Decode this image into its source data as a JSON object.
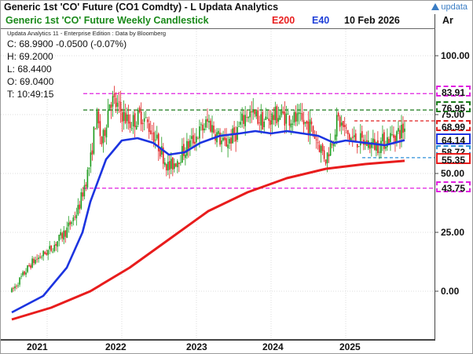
{
  "window": {
    "title": "Generic 1st 'CO' Future (CO1 Comdty) - L Updata Analytics",
    "brand": "updata"
  },
  "header": {
    "chart_title": "Generic 1st 'CO' Future Weekly Candlestick",
    "e200_label": "E200",
    "e40_label": "E40",
    "date": "10 Feb 2026",
    "right_label": "Ar"
  },
  "ohlc": {
    "edition": "Updata Analytics 11 - Enterprise Edition : Data by Bloomberg",
    "close": "C: 68.9900  -0.0500 (-0.07%)",
    "high": "H: 69.2000",
    "low": "L: 68.4400",
    "open": "O: 69.0400",
    "time": "T: 10:49:15"
  },
  "colors": {
    "candle_up": "#1a9a1a",
    "candle_down": "#e02020",
    "e40": "#1c34e0",
    "e200": "#e81c1c",
    "magenta": "#e020e0",
    "green_dash": "#1a7a1a",
    "red_dash": "#e02020",
    "blue_dash": "#2d8fd8"
  },
  "chart_data": {
    "type": "candlestick",
    "title": "Generic 1st 'CO' Future Weekly Candlestick",
    "ylim": [
      -10,
      108
    ],
    "y_ticks": [
      {
        "value": 100,
        "label": "100.00"
      },
      {
        "value": 75,
        "label": "75.00"
      },
      {
        "value": 50,
        "label": "50.00"
      },
      {
        "value": 25,
        "label": "25.00"
      },
      {
        "value": 0,
        "label": "0.00"
      }
    ],
    "x_labels": [
      "2021",
      "2022",
      "2023",
      "2024",
      "2025"
    ],
    "anchors": [
      {
        "t": 0.0,
        "p": 0
      },
      {
        "t": 0.05,
        "p": 12
      },
      {
        "t": 0.1,
        "p": 18
      },
      {
        "t": 0.14,
        "p": 26
      },
      {
        "t": 0.17,
        "p": 35
      },
      {
        "t": 0.2,
        "p": 55
      },
      {
        "t": 0.215,
        "p": 75
      },
      {
        "t": 0.23,
        "p": 62
      },
      {
        "t": 0.25,
        "p": 82
      },
      {
        "t": 0.27,
        "p": 78
      },
      {
        "t": 0.3,
        "p": 71
      },
      {
        "t": 0.33,
        "p": 75
      },
      {
        "t": 0.36,
        "p": 67
      },
      {
        "t": 0.4,
        "p": 52
      },
      {
        "t": 0.43,
        "p": 58
      },
      {
        "t": 0.46,
        "p": 64
      },
      {
        "t": 0.5,
        "p": 72
      },
      {
        "t": 0.54,
        "p": 62
      },
      {
        "t": 0.57,
        "p": 67
      },
      {
        "t": 0.6,
        "p": 76
      },
      {
        "t": 0.64,
        "p": 72
      },
      {
        "t": 0.68,
        "p": 75
      },
      {
        "t": 0.72,
        "p": 73
      },
      {
        "t": 0.76,
        "p": 70
      },
      {
        "t": 0.8,
        "p": 56
      },
      {
        "t": 0.83,
        "p": 73
      },
      {
        "t": 0.86,
        "p": 65
      },
      {
        "t": 0.9,
        "p": 63
      },
      {
        "t": 0.93,
        "p": 62
      },
      {
        "t": 1.0,
        "p": 69
      }
    ],
    "e40": [
      [
        0,
        -9
      ],
      [
        0.08,
        -2
      ],
      [
        0.14,
        10
      ],
      [
        0.18,
        25
      ],
      [
        0.2,
        38
      ],
      [
        0.24,
        56
      ],
      [
        0.28,
        64
      ],
      [
        0.32,
        65
      ],
      [
        0.36,
        63
      ],
      [
        0.4,
        58
      ],
      [
        0.44,
        59
      ],
      [
        0.48,
        63
      ],
      [
        0.53,
        66
      ],
      [
        0.58,
        67
      ],
      [
        0.62,
        68
      ],
      [
        0.66,
        67
      ],
      [
        0.7,
        68
      ],
      [
        0.74,
        67
      ],
      [
        0.78,
        66
      ],
      [
        0.82,
        63
      ],
      [
        0.85,
        64
      ],
      [
        0.9,
        63
      ],
      [
        0.95,
        62
      ],
      [
        1.0,
        64.14
      ]
    ],
    "e200": [
      [
        0,
        -12
      ],
      [
        0.1,
        -7
      ],
      [
        0.2,
        0
      ],
      [
        0.3,
        10
      ],
      [
        0.4,
        22
      ],
      [
        0.5,
        34
      ],
      [
        0.6,
        42
      ],
      [
        0.7,
        48
      ],
      [
        0.8,
        52
      ],
      [
        0.9,
        54
      ],
      [
        1.0,
        55.35
      ]
    ],
    "levels": [
      {
        "value": 83.91,
        "label": "83.91",
        "style": "magenta"
      },
      {
        "value": 76.95,
        "label": "76.95",
        "style": "green_dash"
      },
      {
        "value": 68.99,
        "label": "68.99",
        "style": "red_dash"
      },
      {
        "value": 64.14,
        "label": "64.14",
        "style": "blue_solid"
      },
      {
        "value": 58.72,
        "label": "58.72",
        "style": "blue_dash"
      },
      {
        "value": 55.35,
        "label": "55.35",
        "style": "red_solid"
      },
      {
        "value": 43.75,
        "label": "43.75",
        "style": "magenta"
      }
    ]
  }
}
